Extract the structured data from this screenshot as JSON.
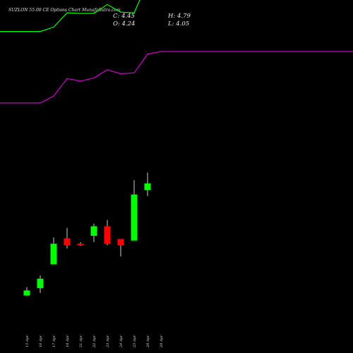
{
  "header": {
    "title": "SUZLON 55.00 CE Options Chart MunafaSutra.com",
    "close_label": "C: 4.45",
    "open_label": "O: 4.24",
    "high_label": "H: 4.79",
    "low_label": "L: 4.05"
  },
  "colors": {
    "background": "#000000",
    "up": "#00ff00",
    "down": "#ff0000",
    "upper_line": "#00ff00",
    "lower_line": "#cc00cc"
  },
  "chart_data": {
    "type": "candlestick",
    "title": "SUZLON 55.00 CE Options Chart MunafaSutra.com",
    "categories": [
      "15 Apr",
      "16 Apr",
      "17 Apr",
      "18 Apr",
      "21 Apr",
      "22 Apr",
      "23 Apr",
      "24 Apr",
      "25 Apr",
      "28 Apr",
      "29 Apr"
    ],
    "ylim": [
      0,
      6.3
    ],
    "candles": [
      {
        "date": "15 Apr",
        "open": 0.92,
        "high": 1.18,
        "low": 0.9,
        "close": 1.08
      },
      {
        "date": "16 Apr",
        "open": 1.15,
        "high": 1.55,
        "low": 1.0,
        "close": 1.45
      },
      {
        "date": "17 Apr",
        "open": 1.9,
        "high": 2.75,
        "low": 1.9,
        "close": 2.55
      },
      {
        "date": "18 Apr",
        "open": 2.72,
        "high": 3.05,
        "low": 2.4,
        "close": 2.5
      },
      {
        "date": "21 Apr",
        "open": 2.55,
        "high": 2.6,
        "low": 2.48,
        "close": 2.5
      },
      {
        "date": "22 Apr",
        "open": 2.8,
        "high": 3.18,
        "low": 2.6,
        "close": 3.1
      },
      {
        "date": "23 Apr",
        "open": 3.1,
        "high": 3.3,
        "low": 2.5,
        "close": 2.55
      },
      {
        "date": "24 Apr",
        "open": 2.7,
        "high": 2.7,
        "low": 2.15,
        "close": 2.5
      },
      {
        "date": "25 Apr",
        "open": 2.65,
        "high": 4.55,
        "low": 2.65,
        "close": 4.1
      },
      {
        "date": "28 Apr",
        "open": 4.24,
        "high": 4.79,
        "low": 4.05,
        "close": 4.45
      }
    ],
    "series": [
      {
        "values": [
          9.23,
          9.23,
          9.37,
          9.82,
          9.8,
          9.8,
          10.08,
          9.84,
          9.82,
          10.77,
          10.88
        ]
      },
      {
        "values": [
          6.98,
          6.98,
          7.2,
          7.75,
          7.67,
          7.77,
          8.03,
          7.9,
          7.93,
          8.52,
          8.6
        ]
      }
    ]
  }
}
